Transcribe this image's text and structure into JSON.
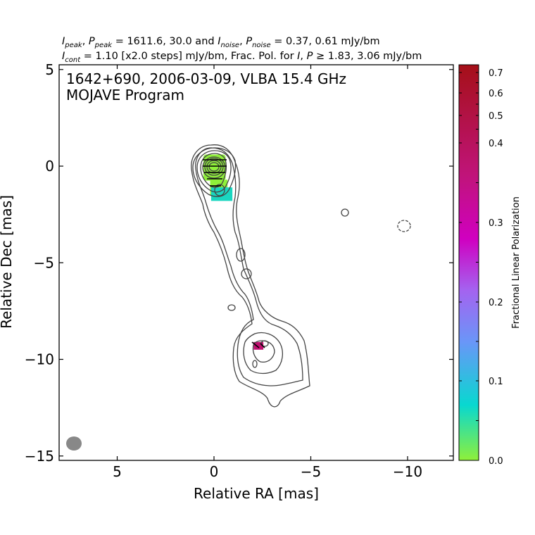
{
  "header": {
    "line1": {
      "I": "I",
      "I_sub": "peak",
      "sep1": ", ",
      "P": "P",
      "P_sub": "peak",
      "val1": " = 1611.6, 30.0 and ",
      "I2": "I",
      "I2_sub": "noise",
      "sep2": ", ",
      "P2": "P",
      "P2_sub": "noise",
      "val2": " = 0.37, 0.61 mJy/bm"
    },
    "line2": {
      "I": "I",
      "I_sub": "cont",
      "val1": " = 1.10 [x2.0 steps] mJy/bm, Frac. Pol. for ",
      "I2": "I",
      "sep": ", ",
      "P": "P",
      "val2": " ≥  1.83, 3.06 mJy/bm"
    }
  },
  "plot_label": {
    "line1": "1642+690, 2006-03-09, VLBA 15.4 GHz",
    "line2": "MOJAVE Program"
  },
  "chart_data": {
    "type": "contour",
    "source": "1642+690",
    "date": "2006-03-09",
    "frequency": "15.4 GHz",
    "xlabel": "Relative RA [mas]",
    "ylabel": "Relative Dec [mas]",
    "xlim": [
      8.0,
      -12.3
    ],
    "ylim": [
      -15.2,
      5.0
    ],
    "x_ticks": [
      5,
      0,
      -5,
      -10
    ],
    "x_tick_labels": [
      "5",
      "0",
      "−5",
      "−10"
    ],
    "y_ticks": [
      5,
      0,
      -5,
      -10,
      -15
    ],
    "y_tick_labels": [
      "5",
      "0",
      "−5",
      "−10",
      "−15"
    ],
    "colorbar": {
      "label": "Fractional Linear Polarization",
      "range": [
        0.0,
        0.72
      ],
      "ticks": [
        0.0,
        0.1,
        0.2,
        0.3,
        0.4,
        0.5,
        0.6,
        0.7
      ],
      "tick_labels": [
        "0.0",
        "0.1",
        "0.2",
        "0.3",
        "0.4",
        "0.5",
        "0.6",
        "0.7"
      ],
      "colors": [
        "#8ff03a",
        "#08d8d0",
        "#6a96f8",
        "#a463f0",
        "#d000c0",
        "#b41050"
      ]
    },
    "contour_color": "#444444",
    "polarization_pixels": [
      {
        "x": 0.0,
        "y": -0.1,
        "frac": 0.02
      },
      {
        "x": -0.35,
        "y": -0.7,
        "frac": 0.03
      },
      {
        "x": -0.3,
        "y": -1.3,
        "frac": 0.1
      },
      {
        "x": -2.3,
        "y": -9.3,
        "frac": 0.47
      }
    ],
    "beam": {
      "x": 7.2,
      "y": -14.4,
      "major": 0.8,
      "minor": 0.7
    }
  }
}
